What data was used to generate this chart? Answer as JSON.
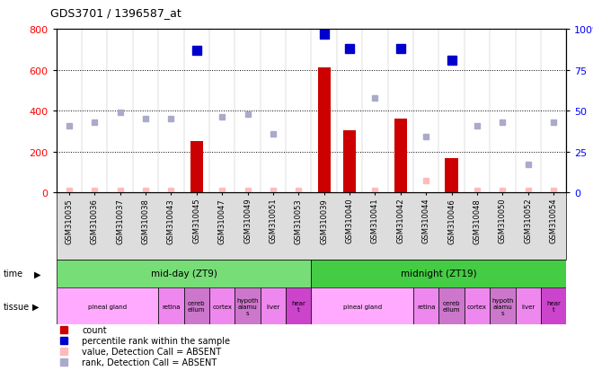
{
  "title": "GDS3701 / 1396587_at",
  "samples": [
    "GSM310035",
    "GSM310036",
    "GSM310037",
    "GSM310038",
    "GSM310043",
    "GSM310045",
    "GSM310047",
    "GSM310049",
    "GSM310051",
    "GSM310053",
    "GSM310039",
    "GSM310040",
    "GSM310041",
    "GSM310042",
    "GSM310044",
    "GSM310046",
    "GSM310048",
    "GSM310050",
    "GSM310052",
    "GSM310054"
  ],
  "count_present": [
    null,
    null,
    null,
    null,
    null,
    250,
    null,
    null,
    null,
    null,
    610,
    305,
    null,
    360,
    null,
    170,
    null,
    null,
    null,
    null
  ],
  "count_absent": [
    10,
    10,
    10,
    10,
    10,
    null,
    10,
    10,
    10,
    10,
    null,
    null,
    10,
    null,
    60,
    null,
    10,
    10,
    10,
    10
  ],
  "rank_present": [
    null,
    null,
    null,
    null,
    null,
    87,
    null,
    null,
    null,
    null,
    97,
    88,
    null,
    88,
    null,
    81,
    null,
    null,
    null,
    null
  ],
  "rank_absent": [
    41,
    43,
    49,
    45,
    45,
    null,
    46,
    48,
    36,
    null,
    null,
    null,
    58,
    null,
    34,
    null,
    41,
    43,
    17,
    43
  ],
  "ylim_left": [
    0,
    800
  ],
  "ylim_right": [
    0,
    100
  ],
  "yticks_left": [
    0,
    200,
    400,
    600,
    800
  ],
  "ytick_labels_left": [
    "0",
    "200",
    "400",
    "600",
    "800"
  ],
  "yticks_right": [
    0,
    25,
    50,
    75,
    100
  ],
  "ytick_labels_right": [
    "0",
    "25",
    "50",
    "75",
    "100%"
  ],
  "color_count_present": "#cc0000",
  "color_count_absent": "#ffbbbb",
  "color_rank_present": "#0000cc",
  "color_rank_absent": "#aaaacc",
  "time_groups": [
    {
      "text": "mid-day (ZT9)",
      "start": 0,
      "end": 10,
      "color": "#77dd77"
    },
    {
      "text": "midnight (ZT19)",
      "start": 10,
      "end": 20,
      "color": "#44cc44"
    }
  ],
  "tissue_groups": [
    {
      "text": "pineal gland",
      "start": 0,
      "end": 4,
      "color": "#ffaaff"
    },
    {
      "text": "retina",
      "start": 4,
      "end": 5,
      "color": "#ee88ee"
    },
    {
      "text": "cereb\nellum",
      "start": 5,
      "end": 6,
      "color": "#cc77cc"
    },
    {
      "text": "cortex",
      "start": 6,
      "end": 7,
      "color": "#ee88ee"
    },
    {
      "text": "hypoth\nalamu\ns",
      "start": 7,
      "end": 8,
      "color": "#cc77cc"
    },
    {
      "text": "liver",
      "start": 8,
      "end": 9,
      "color": "#ee88ee"
    },
    {
      "text": "hear\nt",
      "start": 9,
      "end": 10,
      "color": "#cc44cc"
    },
    {
      "text": "pineal gland",
      "start": 10,
      "end": 14,
      "color": "#ffaaff"
    },
    {
      "text": "retina",
      "start": 14,
      "end": 15,
      "color": "#ee88ee"
    },
    {
      "text": "cereb\nellum",
      "start": 15,
      "end": 16,
      "color": "#cc77cc"
    },
    {
      "text": "cortex",
      "start": 16,
      "end": 17,
      "color": "#ee88ee"
    },
    {
      "text": "hypoth\nalamu\ns",
      "start": 17,
      "end": 18,
      "color": "#cc77cc"
    },
    {
      "text": "liver",
      "start": 18,
      "end": 19,
      "color": "#ee88ee"
    },
    {
      "text": "hear\nt",
      "start": 19,
      "end": 20,
      "color": "#cc44cc"
    }
  ],
  "legend_items": [
    {
      "label": "count",
      "color": "#cc0000"
    },
    {
      "label": "percentile rank within the sample",
      "color": "#0000cc"
    },
    {
      "label": "value, Detection Call = ABSENT",
      "color": "#ffbbbb"
    },
    {
      "label": "rank, Detection Call = ABSENT",
      "color": "#aaaacc"
    }
  ]
}
